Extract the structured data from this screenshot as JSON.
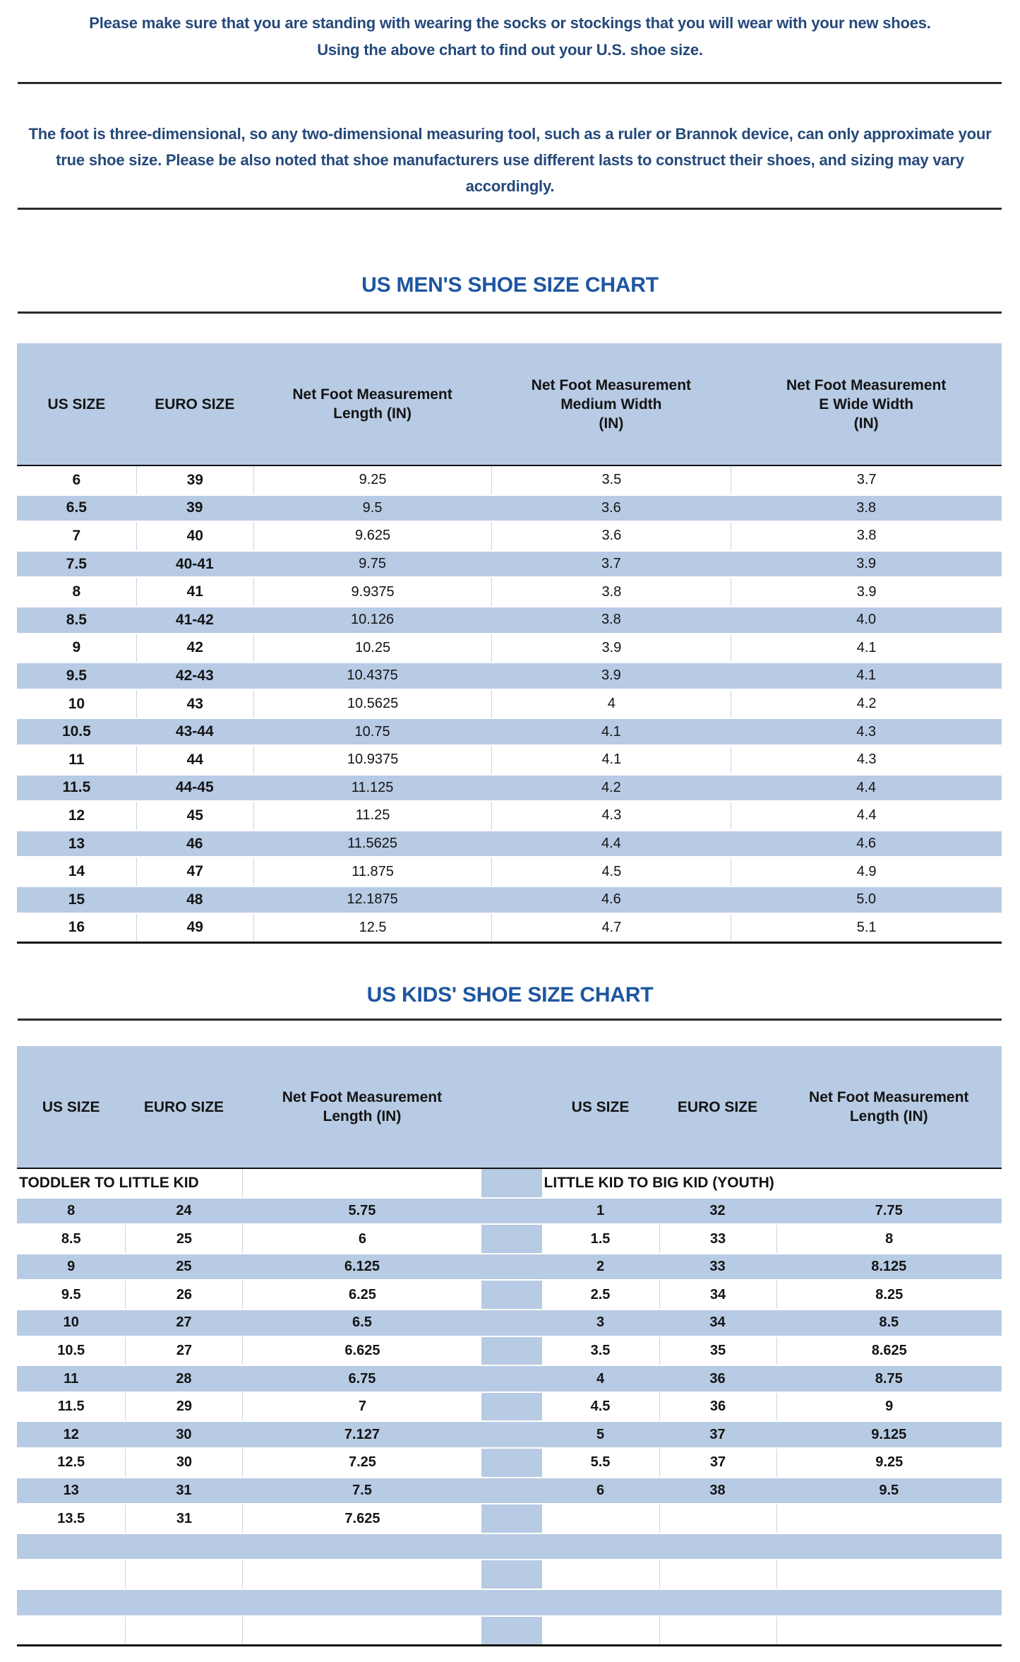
{
  "intro": {
    "line1": "Please make sure that you are standing with wearing the socks or stockings that you will wear with your new shoes.",
    "line2": "Using the above chart to find out your U.S. shoe size."
  },
  "note": "The foot is three-dimensional, so any two-dimensional measuring tool, such as a ruler or Brannok device, can only approximate your true shoe size. Please be also noted that shoe manufacturers use different lasts to construct their shoes, and sizing may vary accordingly.",
  "mens_chart": {
    "title": "US MEN'S SHOE SIZE CHART",
    "columns": [
      "US SIZE",
      "EURO SIZE",
      "Net Foot Measurement\nLength (IN)",
      "Net Foot Measurement\nMedium Width\n（IN)",
      "Net Foot Measurement\nE Wide Width\n（IN）"
    ],
    "rows": [
      [
        "6",
        "39",
        "9.25",
        "3.5",
        "3.7"
      ],
      [
        "6.5",
        "39",
        "9.5",
        "3.6",
        "3.8"
      ],
      [
        "7",
        "40",
        "9.625",
        "3.6",
        "3.8"
      ],
      [
        "7.5",
        "40-41",
        "9.75",
        "3.7",
        "3.9"
      ],
      [
        "8",
        "41",
        "9.9375",
        "3.8",
        "3.9"
      ],
      [
        "8.5",
        "41-42",
        "10.126",
        "3.8",
        "4.0"
      ],
      [
        "9",
        "42",
        "10.25",
        "3.9",
        "4.1"
      ],
      [
        "9.5",
        "42-43",
        "10.4375",
        "3.9",
        "4.1"
      ],
      [
        "10",
        "43",
        "10.5625",
        "4",
        "4.2"
      ],
      [
        "10.5",
        "43-44",
        "10.75",
        "4.1",
        "4.3"
      ],
      [
        "11",
        "44",
        "10.9375",
        "4.1",
        "4.3"
      ],
      [
        "11.5",
        "44-45",
        "11.125",
        "4.2",
        "4.4"
      ],
      [
        "12",
        "45",
        "11.25",
        "4.3",
        "4.4"
      ],
      [
        "13",
        "46",
        "11.5625",
        "4.4",
        "4.6"
      ],
      [
        "14",
        "47",
        "11.875",
        "4.5",
        "4.9"
      ],
      [
        "15",
        "48",
        "12.1875",
        "4.6",
        "5.0"
      ],
      [
        "16",
        "49",
        "12.5",
        "4.7",
        "5.1"
      ]
    ]
  },
  "kids_chart": {
    "title": "US KIDS' SHOE SIZE CHART",
    "columns": [
      "US SIZE",
      "EURO SIZE",
      "Net Foot Measurement\nLength (IN)",
      "US SIZE",
      "EURO SIZE",
      "Net Foot Measurement\nLength (IN)"
    ],
    "section_left": "TODDLER TO LITTLE KID",
    "section_right": "LITTLE KID TO BIG KID (YOUTH)",
    "rows_left": [
      [
        "8",
        "24",
        "5.75"
      ],
      [
        "8.5",
        "25",
        "6"
      ],
      [
        "9",
        "25",
        "6.125"
      ],
      [
        "9.5",
        "26",
        "6.25"
      ],
      [
        "10",
        "27",
        "6.5"
      ],
      [
        "10.5",
        "27",
        "6.625"
      ],
      [
        "11",
        "28",
        "6.75"
      ],
      [
        "11.5",
        "29",
        "7"
      ],
      [
        "12",
        "30",
        "7.127"
      ],
      [
        "12.5",
        "30",
        "7.25"
      ],
      [
        "13",
        "31",
        "7.5"
      ],
      [
        "13.5",
        "31",
        "7.625"
      ]
    ],
    "rows_right": [
      [
        "1",
        "32",
        "7.75"
      ],
      [
        "1.5",
        "33",
        "8"
      ],
      [
        "2",
        "33",
        "8.125"
      ],
      [
        "2.5",
        "34",
        "8.25"
      ],
      [
        "3",
        "34",
        "8.5"
      ],
      [
        "3.5",
        "35",
        "8.625"
      ],
      [
        "4",
        "36",
        "8.75"
      ],
      [
        "4.5",
        "36",
        "9"
      ],
      [
        "5",
        "37",
        "9.125"
      ],
      [
        "5.5",
        "37",
        "9.25"
      ],
      [
        "6",
        "38",
        "9.5"
      ]
    ],
    "empty_trailing_rows": 4
  },
  "colors": {
    "accent_blue_fill": "#b8cbe4",
    "title_blue": "#1e56a0",
    "body_text_blue": "#25497a",
    "table_text": "#141414",
    "rule_color": "#2b2b2b",
    "table_line": "#111111",
    "cell_border": "#ccd4de"
  }
}
